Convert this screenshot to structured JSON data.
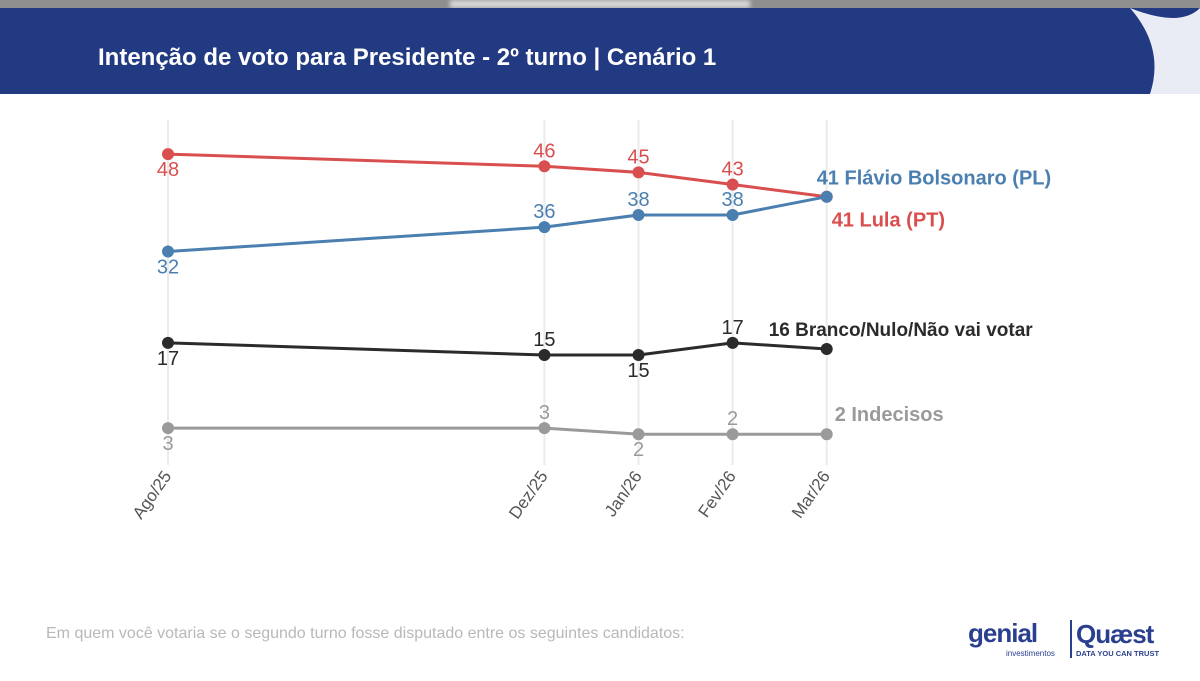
{
  "header": {
    "title": "Intenção de voto para Presidente - 2º turno | Cenário 1"
  },
  "footer": {
    "note": "Em quem você votaria se o segundo turno fosse disputado entre os seguintes candidatos:",
    "logo_left": "genial",
    "logo_left_sub": "investimentos",
    "logo_right": "Quæst",
    "logo_right_sub": "DATA YOU CAN TRUST"
  },
  "colors": {
    "header_bg": "#223a82",
    "lula": "#d94f4f",
    "flavio": "#4a7fb0",
    "branco": "#2b2b2b",
    "indecisos": "#9a9a9a"
  },
  "chart_data": {
    "type": "line",
    "x": [
      "Ago/25",
      "Dez/25",
      "Jan/26",
      "Fev/26",
      "Mar/26"
    ],
    "x_dates": [
      "2025-08",
      "2025-12",
      "2026-01",
      "2026-02",
      "2026-03"
    ],
    "ylim": [
      0,
      50
    ],
    "grid": "vertical",
    "series": [
      {
        "name": "Lula (PT)",
        "color": "#d94f4f",
        "values": [
          48,
          46,
          45,
          43,
          41
        ],
        "end_label": "41 Lula (PT)"
      },
      {
        "name": "Flávio Bolsonaro (PL)",
        "color": "#4a7fb0",
        "values": [
          32,
          36,
          38,
          38,
          41
        ],
        "end_label": "41 Flávio Bolsonaro (PL)"
      },
      {
        "name": "Branco/Nulo/Não vai votar",
        "color": "#2b2b2b",
        "values": [
          17,
          15,
          15,
          17,
          16
        ],
        "end_label": "16 Branco/Nulo/Não vai votar"
      },
      {
        "name": "Indecisos",
        "color": "#9a9a9a",
        "values": [
          3,
          3,
          2,
          2,
          2
        ],
        "end_label": "2 Indecisos"
      }
    ]
  }
}
